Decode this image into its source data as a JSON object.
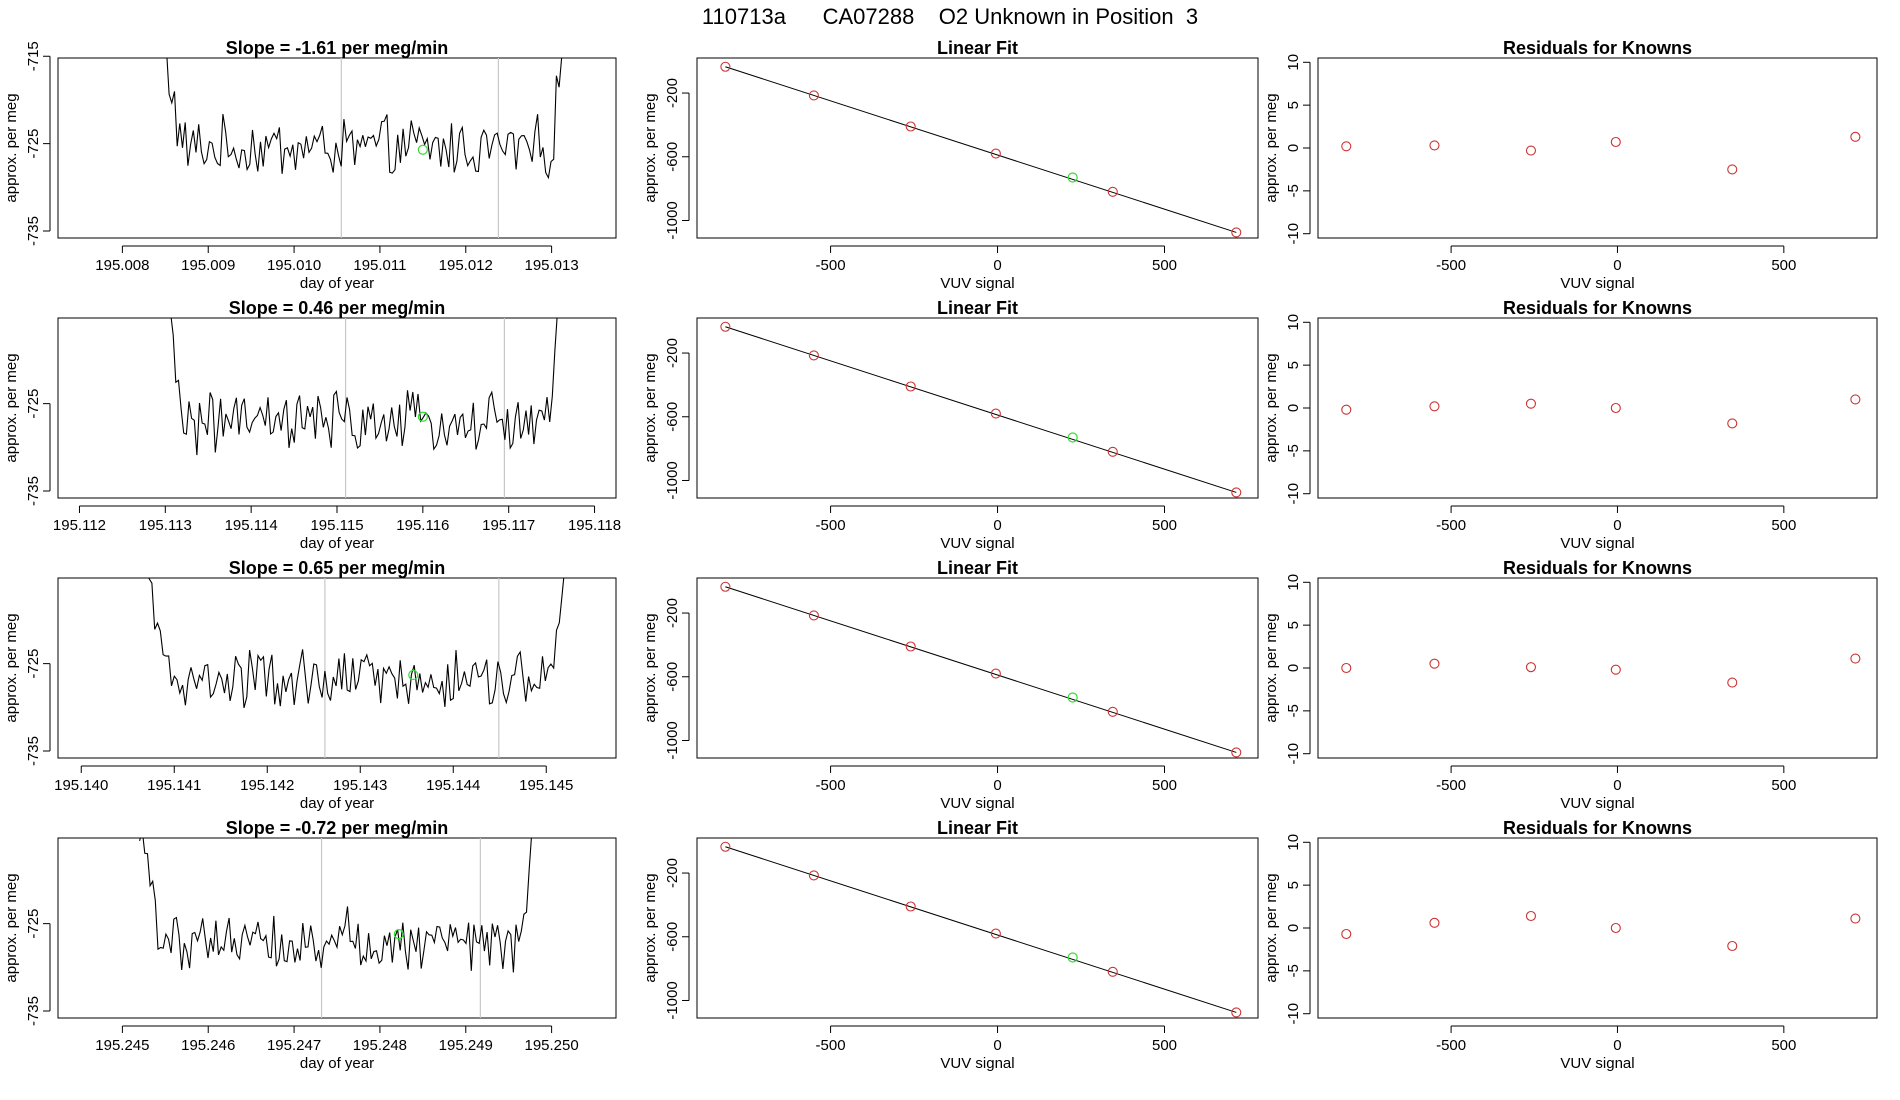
{
  "page_title": "110713a      CA07288    O2 Unknown in Position  3",
  "colors": {
    "known": "#cc3333",
    "unknown": "#33dd33",
    "trace": "#000000",
    "bounds": "#c8c8c8",
    "fit": "#000000"
  },
  "chart_data": [
    {
      "row": 1,
      "panel": "timeseries",
      "type": "line",
      "title": "Slope =  -1.61  per meg/min",
      "xlabel": "day of year",
      "ylabel": "approx. per meg",
      "xlim": [
        195.00725,
        195.01375
      ],
      "ylim": [
        -735.8,
        -715.2
      ],
      "xticks": [
        "195.008",
        "195.009",
        "195.010",
        "195.011",
        "195.012",
        "195.013"
      ],
      "xtick_values": [
        195.008,
        195.009,
        195.01,
        195.011,
        195.012,
        195.013
      ],
      "yticks": [
        "-715",
        "-725",
        "-735"
      ],
      "ytick_values": [
        -715,
        -725,
        -735
      ],
      "t_start": 195.00845,
      "t_end": 195.01315,
      "base": -725.5,
      "bounds": [
        195.01055,
        195.01238
      ],
      "unknown_point": {
        "x": 195.0115,
        "y": -725.7
      }
    },
    {
      "row": 1,
      "panel": "linear_fit",
      "type": "scatter",
      "title": "Linear Fit",
      "xlabel": "VUV signal",
      "ylabel": "approx. per meg",
      "xlim": [
        -900,
        780
      ],
      "ylim": [
        -1110,
        20
      ],
      "xticks": [
        "-500",
        "0",
        "500"
      ],
      "xtick_values": [
        -500,
        0,
        500
      ],
      "yticks": [
        "-200",
        "-600",
        "-1000"
      ],
      "ytick_values": [
        -200,
        -600,
        -1000
      ],
      "fit_line": [
        [
          -815,
          -35
        ],
        [
          715,
          -1075
        ]
      ],
      "known_points": [
        [
          -815,
          -35
        ],
        [
          -550,
          -215
        ],
        [
          -260,
          -410
        ],
        [
          -5,
          -580
        ],
        [
          345,
          -820
        ],
        [
          715,
          -1075
        ]
      ],
      "unknown_points": [
        [
          225,
          -730
        ]
      ]
    },
    {
      "row": 1,
      "panel": "residuals",
      "type": "scatter",
      "title": "Residuals for Knowns",
      "xlabel": "VUV signal",
      "ylabel": "approx. per meg",
      "xlim": [
        -900,
        780
      ],
      "ylim": [
        -10.5,
        10.5
      ],
      "xticks": [
        "-500",
        "0",
        "500"
      ],
      "xtick_values": [
        -500,
        0,
        500
      ],
      "yticks": [
        "10",
        "5",
        "0",
        "-5",
        "-10"
      ],
      "ytick_values": [
        10,
        5,
        0,
        -5,
        -10
      ],
      "points": [
        [
          -815,
          0.2
        ],
        [
          -550,
          0.3
        ],
        [
          -260,
          -0.3
        ],
        [
          -5,
          0.7
        ],
        [
          345,
          -2.5
        ],
        [
          715,
          1.3
        ]
      ]
    },
    {
      "row": 2,
      "panel": "timeseries",
      "type": "line",
      "title": "Slope =  0.46  per meg/min",
      "xlabel": "day of year",
      "ylabel": "approx. per meg",
      "xlim": [
        195.11175,
        195.11825
      ],
      "ylim": [
        -735.8,
        -715.2
      ],
      "xticks": [
        "195.112",
        "195.113",
        "195.114",
        "195.115",
        "195.116",
        "195.117",
        "195.118"
      ],
      "xtick_values": [
        195.112,
        195.113,
        195.114,
        195.115,
        195.116,
        195.117,
        195.118
      ],
      "yticks": [
        "-725",
        "-735"
      ],
      "ytick_values": [
        -725,
        -735
      ],
      "t_start": 195.113,
      "t_end": 195.1176,
      "base": -727.2,
      "bounds": [
        195.1151,
        195.11695
      ],
      "unknown_point": {
        "x": 195.116,
        "y": -726.5
      }
    },
    {
      "row": 2,
      "panel": "linear_fit",
      "type": "scatter",
      "title": "Linear Fit",
      "xlabel": "VUV signal",
      "ylabel": "approx. per meg",
      "xlim": [
        -900,
        780
      ],
      "ylim": [
        -1110,
        20
      ],
      "xticks": [
        "-500",
        "0",
        "500"
      ],
      "xtick_values": [
        -500,
        0,
        500
      ],
      "yticks": [
        "-200",
        "-600",
        "-1000"
      ],
      "ytick_values": [
        -200,
        -600,
        -1000
      ],
      "fit_line": [
        [
          -815,
          -35
        ],
        [
          715,
          -1075
        ]
      ],
      "known_points": [
        [
          -815,
          -35
        ],
        [
          -550,
          -215
        ],
        [
          -260,
          -410
        ],
        [
          -5,
          -580
        ],
        [
          345,
          -820
        ],
        [
          715,
          -1075
        ]
      ],
      "unknown_points": [
        [
          225,
          -730
        ]
      ]
    },
    {
      "row": 2,
      "panel": "residuals",
      "type": "scatter",
      "title": "Residuals for Knowns",
      "xlabel": "VUV signal",
      "ylabel": "approx. per meg",
      "xlim": [
        -900,
        780
      ],
      "ylim": [
        -10.5,
        10.5
      ],
      "xticks": [
        "-500",
        "0",
        "500"
      ],
      "xtick_values": [
        -500,
        0,
        500
      ],
      "yticks": [
        "10",
        "5",
        "0",
        "-5",
        "-10"
      ],
      "ytick_values": [
        10,
        5,
        0,
        -5,
        -10
      ],
      "points": [
        [
          -815,
          -0.2
        ],
        [
          -550,
          0.2
        ],
        [
          -260,
          0.5
        ],
        [
          -5,
          0.0
        ],
        [
          345,
          -1.8
        ],
        [
          715,
          1.0
        ]
      ]
    },
    {
      "row": 3,
      "panel": "timeseries",
      "type": "line",
      "title": "Slope =  0.65  per meg/min",
      "xlabel": "day of year",
      "ylabel": "approx. per meg",
      "xlim": [
        195.13975,
        195.14575
      ],
      "ylim": [
        -735.8,
        -715.2
      ],
      "xticks": [
        "195.140",
        "195.141",
        "195.142",
        "195.143",
        "195.144",
        "195.145"
      ],
      "xtick_values": [
        195.14,
        195.141,
        195.142,
        195.143,
        195.144,
        195.145
      ],
      "yticks": [
        "-725",
        "-735"
      ],
      "ytick_values": [
        -725,
        -735
      ],
      "t_start": 195.1407,
      "t_end": 195.1452,
      "base": -727.0,
      "bounds": [
        195.14262,
        195.14449
      ],
      "unknown_point": {
        "x": 195.14357,
        "y": -726.3
      }
    },
    {
      "row": 3,
      "panel": "linear_fit",
      "type": "scatter",
      "title": "Linear Fit",
      "xlabel": "VUV signal",
      "ylabel": "approx. per meg",
      "xlim": [
        -900,
        780
      ],
      "ylim": [
        -1110,
        20
      ],
      "xticks": [
        "-500",
        "0",
        "500"
      ],
      "xtick_values": [
        -500,
        0,
        500
      ],
      "yticks": [
        "-200",
        "-600",
        "-1000"
      ],
      "ytick_values": [
        -200,
        -600,
        -1000
      ],
      "fit_line": [
        [
          -815,
          -35
        ],
        [
          715,
          -1075
        ]
      ],
      "known_points": [
        [
          -815,
          -35
        ],
        [
          -550,
          -215
        ],
        [
          -260,
          -410
        ],
        [
          -5,
          -580
        ],
        [
          345,
          -820
        ],
        [
          715,
          -1075
        ]
      ],
      "unknown_points": [
        [
          225,
          -730
        ]
      ]
    },
    {
      "row": 3,
      "panel": "residuals",
      "type": "scatter",
      "title": "Residuals for Knowns",
      "xlabel": "VUV signal",
      "ylabel": "approx. per meg",
      "xlim": [
        -900,
        780
      ],
      "ylim": [
        -10.5,
        10.5
      ],
      "xticks": [
        "-500",
        "0",
        "500"
      ],
      "xtick_values": [
        -500,
        0,
        500
      ],
      "yticks": [
        "10",
        "5",
        "0",
        "-5",
        "-10"
      ],
      "ytick_values": [
        10,
        5,
        0,
        -5,
        -10
      ],
      "points": [
        [
          -815,
          0.0
        ],
        [
          -550,
          0.5
        ],
        [
          -260,
          0.1
        ],
        [
          -5,
          -0.2
        ],
        [
          345,
          -1.7
        ],
        [
          715,
          1.1
        ]
      ]
    },
    {
      "row": 4,
      "panel": "timeseries",
      "type": "line",
      "title": "Slope =  -0.72  per meg/min",
      "xlabel": "day of year",
      "ylabel": "approx. per meg",
      "xlim": [
        195.24425,
        195.25075
      ],
      "ylim": [
        -735.8,
        -715.2
      ],
      "xticks": [
        "195.245",
        "195.246",
        "195.247",
        "195.248",
        "195.249",
        "195.250"
      ],
      "xtick_values": [
        195.245,
        195.246,
        195.247,
        195.248,
        195.249,
        195.25
      ],
      "yticks": [
        "-725",
        "-735"
      ],
      "ytick_values": [
        -725,
        -735
      ],
      "t_start": 195.2452,
      "t_end": 195.2498,
      "base": -726.8,
      "bounds": [
        195.24732,
        195.24917
      ],
      "unknown_point": {
        "x": 195.24822,
        "y": -726.2
      }
    },
    {
      "row": 4,
      "panel": "linear_fit",
      "type": "scatter",
      "title": "Linear Fit",
      "xlabel": "VUV signal",
      "ylabel": "approx. per meg",
      "xlim": [
        -900,
        780
      ],
      "ylim": [
        -1110,
        20
      ],
      "xticks": [
        "-500",
        "0",
        "500"
      ],
      "xtick_values": [
        -500,
        0,
        500
      ],
      "yticks": [
        "-200",
        "-600",
        "-1000"
      ],
      "ytick_values": [
        -200,
        -600,
        -1000
      ],
      "fit_line": [
        [
          -815,
          -35
        ],
        [
          715,
          -1075
        ]
      ],
      "known_points": [
        [
          -815,
          -35
        ],
        [
          -550,
          -215
        ],
        [
          -260,
          -410
        ],
        [
          -5,
          -580
        ],
        [
          345,
          -820
        ],
        [
          715,
          -1075
        ]
      ],
      "unknown_points": [
        [
          225,
          -730
        ]
      ]
    },
    {
      "row": 4,
      "panel": "residuals",
      "type": "scatter",
      "title": "Residuals for Knowns",
      "xlabel": "VUV signal",
      "ylabel": "approx. per meg",
      "xlim": [
        -900,
        780
      ],
      "ylim": [
        -10.5,
        10.5
      ],
      "xticks": [
        "-500",
        "0",
        "500"
      ],
      "xtick_values": [
        -500,
        0,
        500
      ],
      "yticks": [
        "10",
        "5",
        "0",
        "-5",
        "-10"
      ],
      "ytick_values": [
        10,
        5,
        0,
        -5,
        -10
      ],
      "points": [
        [
          -815,
          -0.7
        ],
        [
          -550,
          0.6
        ],
        [
          -260,
          1.4
        ],
        [
          -5,
          0.0
        ],
        [
          345,
          -2.1
        ],
        [
          715,
          1.1
        ]
      ]
    }
  ]
}
